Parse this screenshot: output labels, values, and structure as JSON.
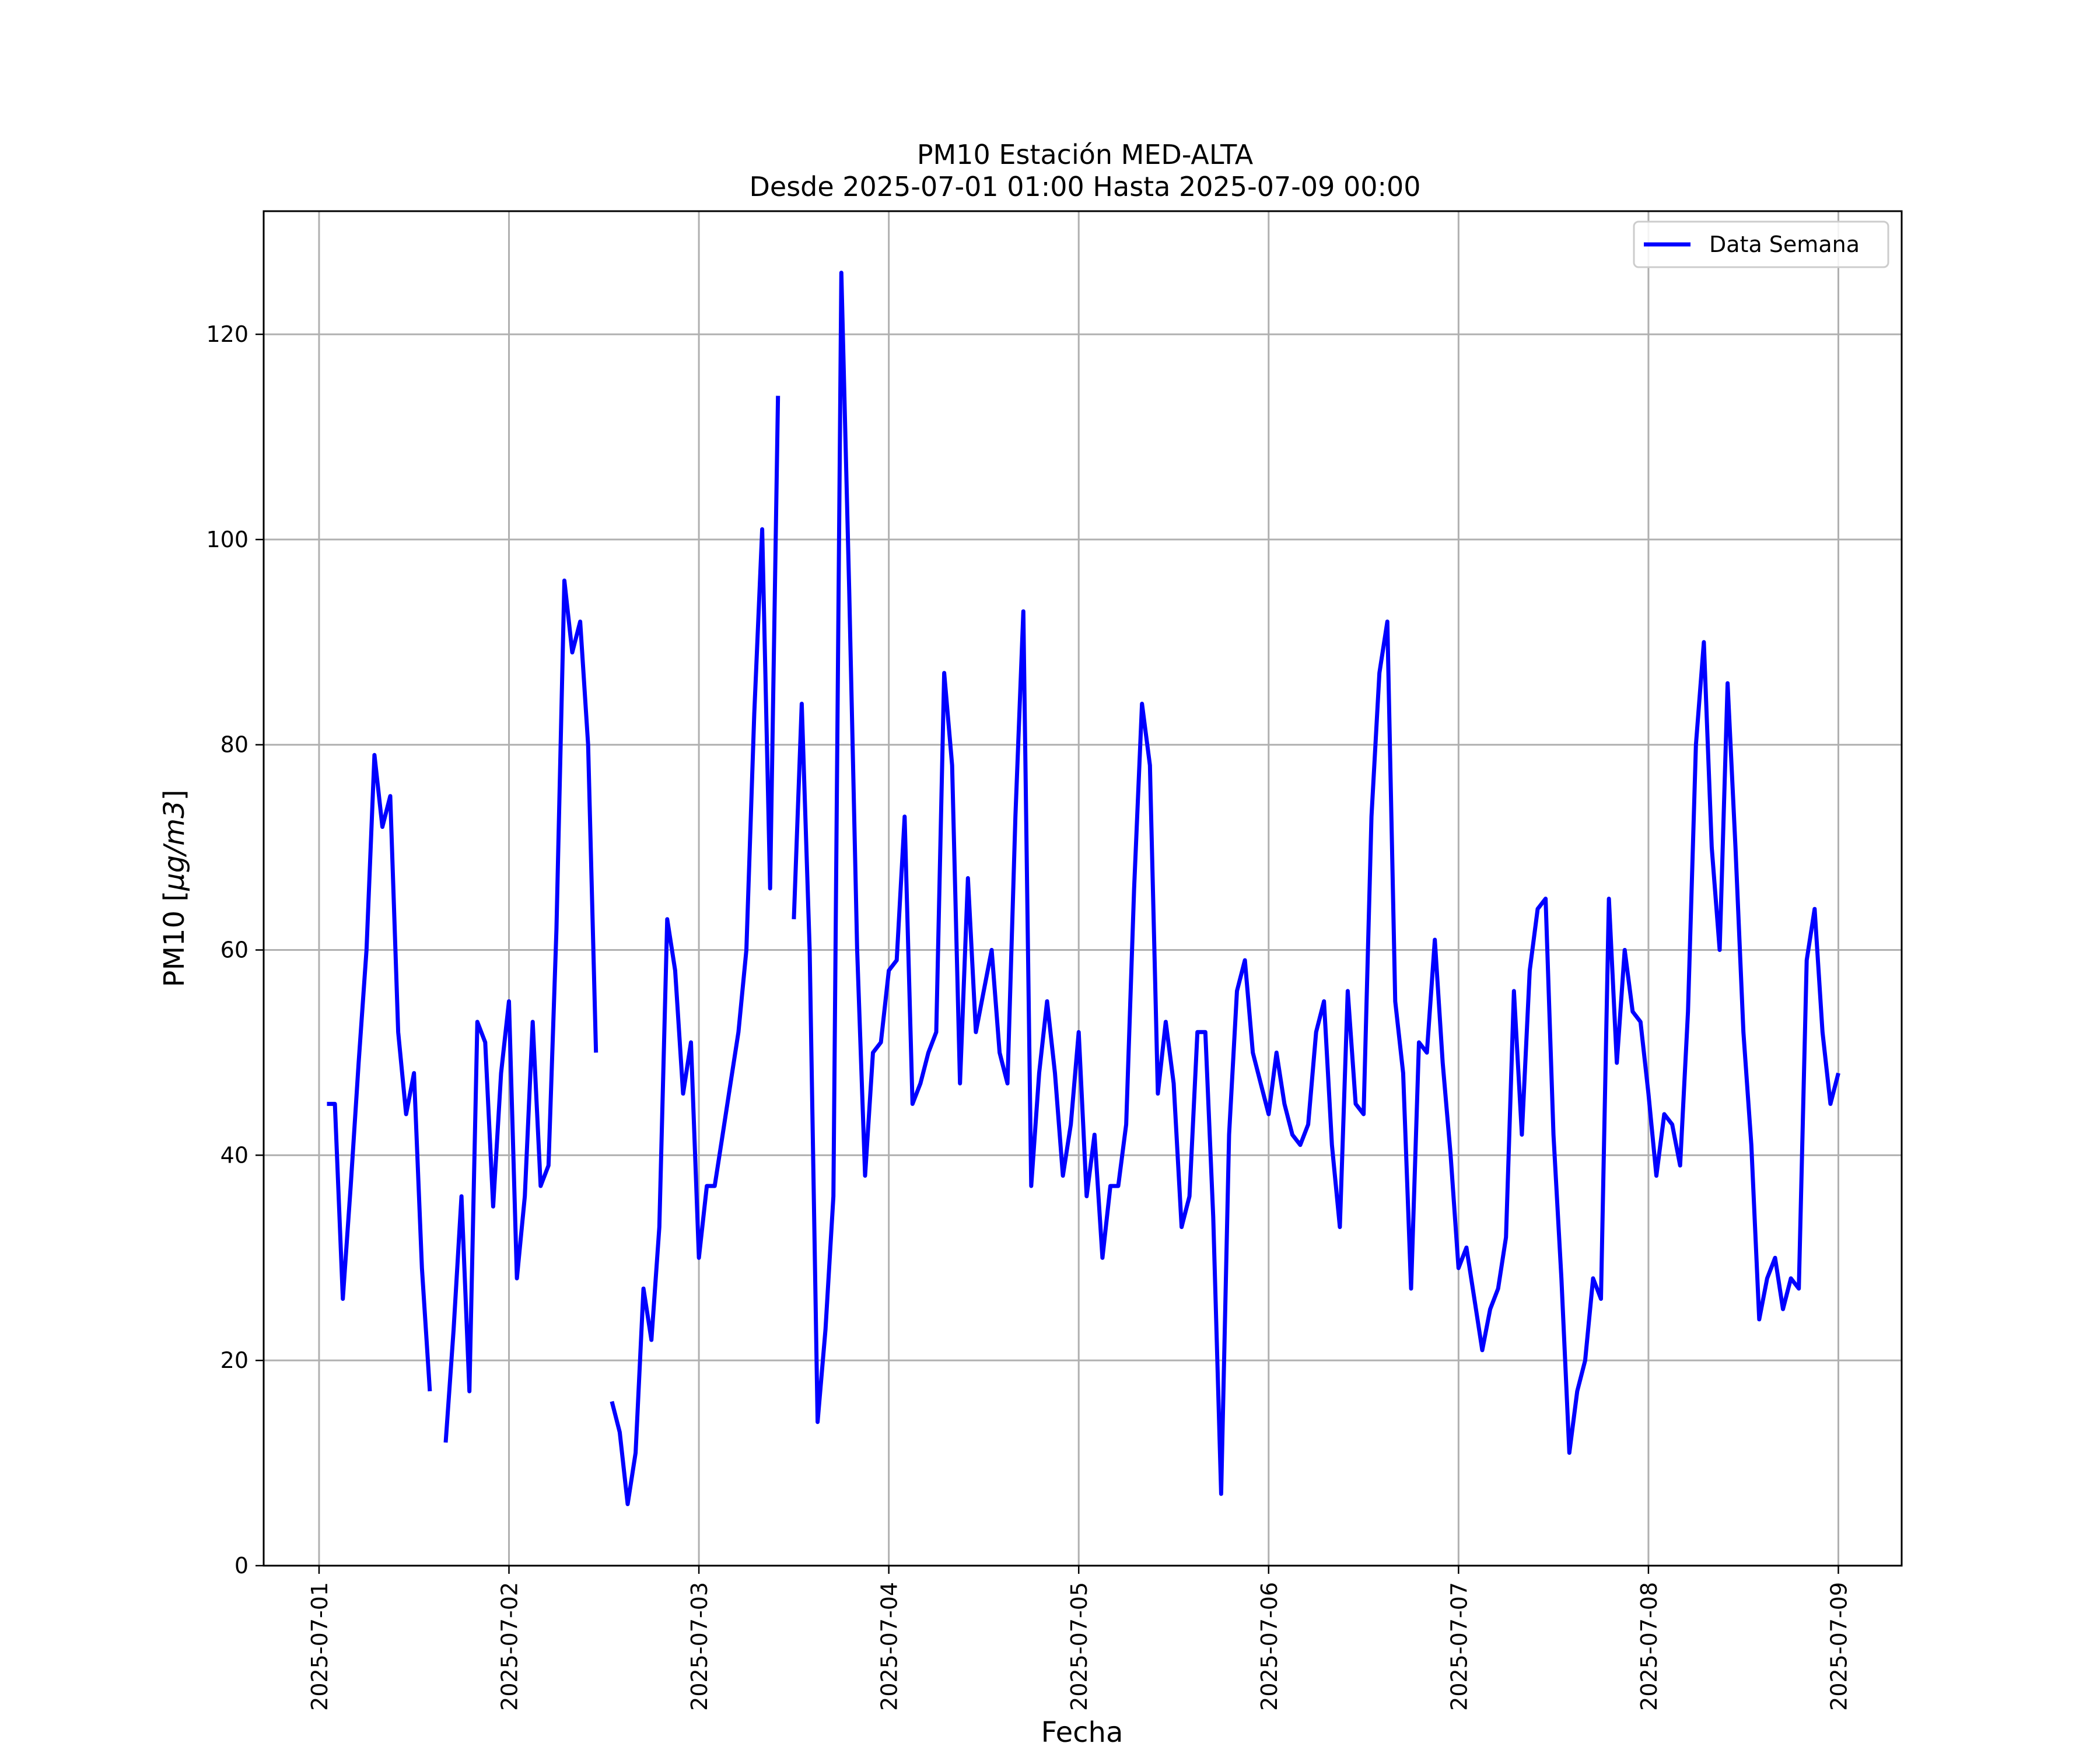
{
  "chart_data": {
    "type": "line",
    "title": "PM10 Estación MED-ALTA",
    "subtitle": "Desde 2025-07-01 01:00 Hasta 2025-07-09 00:00",
    "xlabel": "Fecha",
    "ylabel": "PM10 [μg/m3]",
    "ylabel_main": "PM10 [",
    "ylabel_unit": "μg/m3",
    "ylabel_close": "]",
    "xlim": [
      "2025-06-30T17:00",
      "2025-07-09T08:00"
    ],
    "ylim": [
      0,
      132
    ],
    "grid": true,
    "legend_position": "top-right",
    "x_ticks": [
      "2025-07-01",
      "2025-07-02",
      "2025-07-03",
      "2025-07-04",
      "2025-07-05",
      "2025-07-06",
      "2025-07-07",
      "2025-07-08",
      "2025-07-09"
    ],
    "y_ticks": [
      0,
      20,
      40,
      60,
      80,
      100,
      120
    ],
    "series": [
      {
        "name": "Data Semana",
        "color": "#0000ff",
        "x_start": "2025-07-01T01:00",
        "x_step": "1h",
        "values": [
          45,
          45,
          26,
          37,
          49,
          60,
          79,
          72,
          75,
          52,
          44,
          48,
          29,
          17,
          null,
          12,
          23,
          36,
          17,
          53,
          51,
          35,
          48,
          55,
          28,
          36,
          53,
          37,
          39,
          62,
          96,
          89,
          92,
          80,
          50,
          null,
          16,
          13,
          6,
          11,
          27,
          22,
          33,
          63,
          58,
          46,
          51,
          30,
          37,
          37,
          42,
          47,
          52,
          60,
          83,
          101,
          66,
          114,
          null,
          63,
          84,
          60,
          14,
          23,
          36,
          126,
          95,
          60,
          38,
          50,
          51,
          58,
          59,
          73,
          45,
          47,
          50,
          52,
          87,
          78,
          47,
          67,
          52,
          56,
          60,
          50,
          47,
          73,
          93,
          37,
          48,
          55,
          48,
          38,
          43,
          52,
          36,
          42,
          30,
          37,
          37,
          43,
          66,
          84,
          78,
          46,
          53,
          47,
          33,
          36,
          52,
          52,
          34,
          7,
          42,
          56,
          59,
          50,
          47,
          44,
          50,
          45,
          42,
          41,
          43,
          52,
          55,
          41,
          33,
          56,
          45,
          44,
          73,
          87,
          92,
          55,
          48,
          27,
          51,
          50,
          61,
          49,
          40,
          29,
          31,
          26,
          21,
          25,
          27,
          32,
          56,
          42,
          58,
          64,
          65,
          42,
          28,
          11,
          17,
          20,
          28,
          26,
          65,
          49,
          60,
          54,
          53,
          46,
          38,
          44,
          43,
          39,
          54,
          80,
          90,
          70,
          60,
          86,
          70,
          52,
          41,
          24,
          28,
          30,
          25,
          28,
          27,
          59,
          64,
          52,
          45,
          48
        ]
      }
    ]
  }
}
